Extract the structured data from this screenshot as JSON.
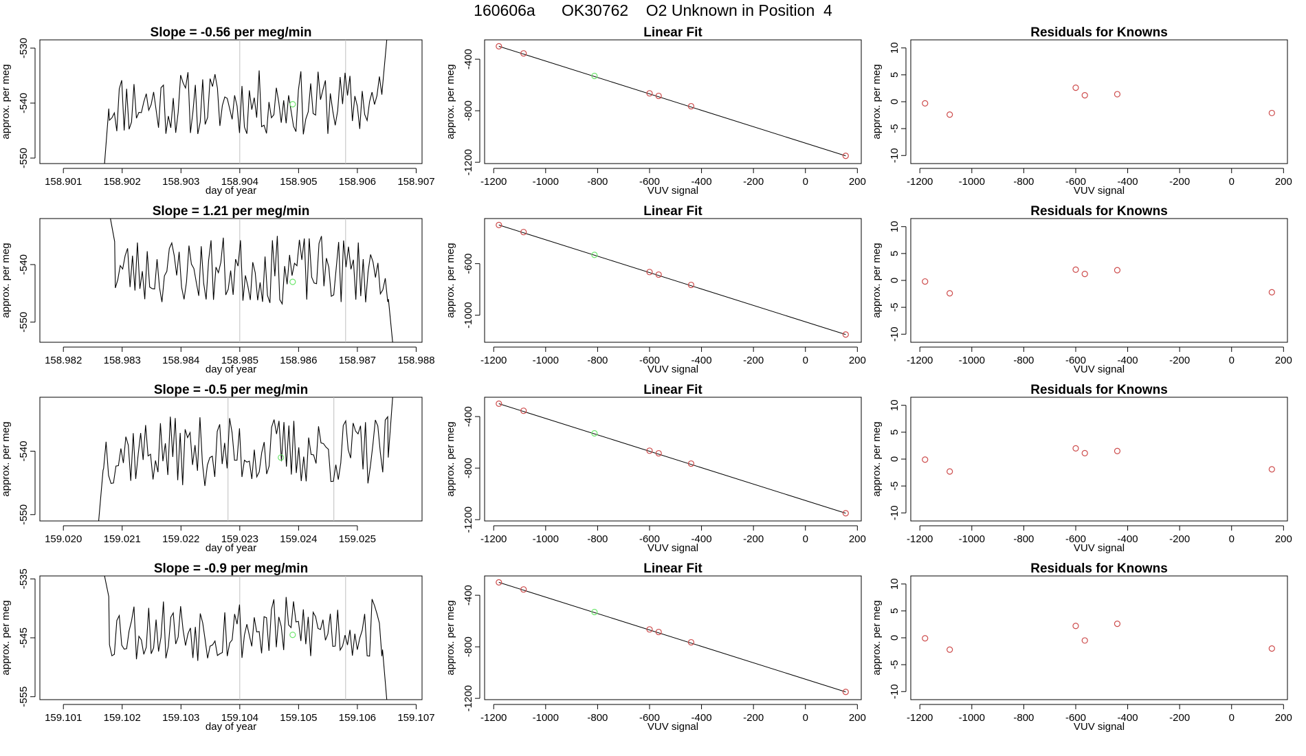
{
  "page_title": "160606a      OK30762    O2 Unknown in Position  4",
  "colors": {
    "line": "#000000",
    "marker_known": "#cd4b4b",
    "marker_unknown": "#6ee66e",
    "vline": "#bebebe",
    "box": "#000000"
  },
  "chart_data": [
    {
      "type": "line",
      "title": "Slope =  -0.56  per meg/min",
      "xlabel": "day of year",
      "ylabel": "approx. per meg",
      "xlim": [
        158.9006,
        158.9071
      ],
      "ylim": [
        -551,
        -528.5
      ],
      "xticks": [
        158.901,
        158.902,
        158.903,
        158.904,
        158.905,
        158.906,
        158.907
      ],
      "xtick_labels": [
        "158.901",
        "158.902",
        "158.903",
        "158.904",
        "158.905",
        "158.906",
        "158.907"
      ],
      "yticks": [
        -550,
        -540,
        -530
      ],
      "ytick_labels": [
        "-550",
        "-540",
        "-530"
      ],
      "vlines": [
        158.904,
        158.9058
      ],
      "unknown_point": [
        158.9049,
        -540.2
      ],
      "series_start": 158.9017,
      "series_end": 158.9065,
      "head": [
        -551,
        -541
      ],
      "tail": [
        -537,
        -528.5
      ],
      "signal": {
        "base": -540,
        "amp": 6,
        "count": 116,
        "seed": 11
      }
    },
    {
      "type": "line",
      "title": "Slope =  1.21  per meg/min",
      "xlabel": "day of year",
      "ylabel": "approx. per meg",
      "xlim": [
        158.9816,
        158.9881
      ],
      "ylim": [
        -553.5,
        -532
      ],
      "xticks": [
        158.982,
        158.983,
        158.984,
        158.985,
        158.986,
        158.987,
        158.988
      ],
      "xtick_labels": [
        "158.982",
        "158.983",
        "158.984",
        "158.985",
        "158.986",
        "158.987",
        "158.988"
      ],
      "yticks": [
        -550,
        -540
      ],
      "ytick_labels": [
        "-550",
        "-540"
      ],
      "vlines": [
        158.985,
        158.9868
      ],
      "unknown_point": [
        158.9859,
        -543
      ],
      "series_start": 158.9828,
      "series_end": 158.9876,
      "head": [
        -532,
        -536
      ],
      "tail": [
        -546,
        -553.5
      ],
      "signal": {
        "base": -541,
        "amp": 6,
        "count": 116,
        "seed": 23
      }
    },
    {
      "type": "line",
      "title": "Slope =  -0.5  per meg/min",
      "xlabel": "day of year",
      "ylabel": "approx. per meg",
      "xlim": [
        159.0196,
        159.0261
      ],
      "ylim": [
        -551,
        -531.5
      ],
      "xticks": [
        159.02,
        159.021,
        159.022,
        159.023,
        159.024,
        159.025
      ],
      "xtick_labels": [
        "159.020",
        "159.021",
        "159.022",
        "159.023",
        "159.024",
        "159.025"
      ],
      "yticks": [
        -550,
        -540
      ],
      "ytick_labels": [
        "-550",
        "-540"
      ],
      "vlines": [
        159.0228,
        159.0246
      ],
      "unknown_point": [
        159.0237,
        -541
      ],
      "series_start": 159.0206,
      "series_end": 159.0256,
      "head": [
        -551,
        -543
      ],
      "tail": [
        -541,
        -531.5
      ],
      "signal": {
        "base": -540,
        "amp": 5.5,
        "count": 120,
        "seed": 37
      }
    },
    {
      "type": "line",
      "title": "Slope =  -0.9  per meg/min",
      "xlabel": "day of year",
      "ylabel": "approx. per meg",
      "xlim": [
        159.1006,
        159.1071
      ],
      "ylim": [
        -555.5,
        -534.5
      ],
      "xticks": [
        159.101,
        159.102,
        159.103,
        159.104,
        159.105,
        159.106,
        159.107
      ],
      "xtick_labels": [
        "159.101",
        "159.102",
        "159.103",
        "159.104",
        "159.105",
        "159.106",
        "159.107"
      ],
      "yticks": [
        -555,
        -545,
        -535
      ],
      "ytick_labels": [
        "-555",
        "-545",
        "-535"
      ],
      "vlines": [
        159.104,
        159.1058
      ],
      "unknown_point": [
        159.1049,
        -544.5
      ],
      "series_start": 159.1017,
      "series_end": 159.1065,
      "head": [
        -534.5,
        -538
      ],
      "tail": [
        -547,
        -555.5
      ],
      "signal": {
        "base": -543.5,
        "amp": 5.5,
        "count": 116,
        "seed": 53
      }
    },
    {
      "type": "scatter",
      "title": "Linear Fit",
      "xlabel": "VUV signal",
      "ylabel": "approx. per meg",
      "xlim": [
        -1235,
        215
      ],
      "ylim": [
        -1210,
        -250
      ],
      "xticks": [
        -1200,
        -1000,
        -800,
        -600,
        -400,
        -200,
        0,
        200
      ],
      "xtick_labels": [
        "-1200",
        "-1000",
        "-800",
        "-600",
        "-400",
        "-200",
        "0",
        "200"
      ],
      "yticks": [
        -1200,
        -800,
        -400
      ],
      "ytick_labels": [
        "-1200",
        "-800",
        "-400"
      ],
      "known_x": [
        -1180,
        -1085,
        -600,
        -565,
        -440,
        155
      ],
      "known_y": [
        -300,
        -355,
        -665,
        -685,
        -765,
        -1150
      ],
      "unknown_x": [
        -812
      ],
      "unknown_y": [
        -530
      ],
      "fit_x": [
        -1180,
        155
      ],
      "fit_y": [
        -300,
        -1150
      ]
    },
    {
      "type": "scatter",
      "title": "Linear Fit",
      "xlabel": "VUV signal",
      "ylabel": "approx. per meg",
      "xlim": [
        -1235,
        215
      ],
      "ylim": [
        -1210,
        -250
      ],
      "xticks": [
        -1200,
        -1000,
        -800,
        -600,
        -400,
        -200,
        0,
        200
      ],
      "xtick_labels": [
        "-1200",
        "-1000",
        "-800",
        "-600",
        "-400",
        "-200",
        "0",
        "200"
      ],
      "yticks": [
        -1000,
        -600
      ],
      "ytick_labels": [
        "-1000",
        "-600"
      ],
      "known_x": [
        -1180,
        -1085,
        -600,
        -565,
        -440,
        155
      ],
      "known_y": [
        -300,
        -355,
        -665,
        -685,
        -765,
        -1150
      ],
      "unknown_x": [
        -812
      ],
      "unknown_y": [
        -532
      ],
      "fit_x": [
        -1180,
        155
      ],
      "fit_y": [
        -300,
        -1150
      ]
    },
    {
      "type": "scatter",
      "title": "Linear Fit",
      "xlabel": "VUV signal",
      "ylabel": "approx. per meg",
      "xlim": [
        -1235,
        215
      ],
      "ylim": [
        -1210,
        -250
      ],
      "xticks": [
        -1200,
        -1000,
        -800,
        -600,
        -400,
        -200,
        0,
        200
      ],
      "xtick_labels": [
        "-1200",
        "-1000",
        "-800",
        "-600",
        "-400",
        "-200",
        "0",
        "200"
      ],
      "yticks": [
        -1200,
        -800,
        -400
      ],
      "ytick_labels": [
        "-1200",
        "-800",
        "-400"
      ],
      "known_x": [
        -1180,
        -1085,
        -600,
        -565,
        -440,
        155
      ],
      "known_y": [
        -300,
        -355,
        -665,
        -685,
        -765,
        -1150
      ],
      "unknown_x": [
        -812
      ],
      "unknown_y": [
        -530
      ],
      "fit_x": [
        -1180,
        155
      ],
      "fit_y": [
        -300,
        -1150
      ]
    },
    {
      "type": "scatter",
      "title": "Linear Fit",
      "xlabel": "VUV signal",
      "ylabel": "approx. per meg",
      "xlim": [
        -1235,
        215
      ],
      "ylim": [
        -1210,
        -250
      ],
      "xticks": [
        -1200,
        -1000,
        -800,
        -600,
        -400,
        -200,
        0,
        200
      ],
      "xtick_labels": [
        "-1200",
        "-1000",
        "-800",
        "-600",
        "-400",
        "-200",
        "0",
        "200"
      ],
      "yticks": [
        -1200,
        -800,
        -400
      ],
      "ytick_labels": [
        "-1200",
        "-800",
        "-400"
      ],
      "known_x": [
        -1180,
        -1085,
        -600,
        -565,
        -440,
        155
      ],
      "known_y": [
        -300,
        -355,
        -665,
        -685,
        -765,
        -1150
      ],
      "unknown_x": [
        -812
      ],
      "unknown_y": [
        -530
      ],
      "fit_x": [
        -1180,
        155
      ],
      "fit_y": [
        -300,
        -1150
      ]
    },
    {
      "type": "scatter",
      "title": "Residuals for Knowns",
      "xlabel": "VUV signal",
      "ylabel": "approx. per meg",
      "xlim": [
        -1235,
        215
      ],
      "ylim": [
        -11.5,
        11.5
      ],
      "xticks": [
        -1200,
        -1000,
        -800,
        -600,
        -400,
        -200,
        0,
        200
      ],
      "xtick_labels": [
        "-1200",
        "-1000",
        "-800",
        "-600",
        "-400",
        "-200",
        "0",
        "200"
      ],
      "yticks": [
        -10,
        -5,
        0,
        5,
        10
      ],
      "ytick_labels": [
        "-10",
        "-5",
        "0",
        "5",
        "10"
      ],
      "known_x": [
        -1180,
        -1085,
        -600,
        -565,
        -440,
        155
      ],
      "known_y": [
        -0.3,
        -2.4,
        2.6,
        1.2,
        1.4,
        -2.1
      ]
    },
    {
      "type": "scatter",
      "title": "Residuals for Knowns",
      "xlabel": "VUV signal",
      "ylabel": "approx. per meg",
      "xlim": [
        -1235,
        215
      ],
      "ylim": [
        -11.5,
        11.5
      ],
      "xticks": [
        -1200,
        -1000,
        -800,
        -600,
        -400,
        -200,
        0,
        200
      ],
      "xtick_labels": [
        "-1200",
        "-1000",
        "-800",
        "-600",
        "-400",
        "-200",
        "0",
        "200"
      ],
      "yticks": [
        -10,
        -5,
        0,
        5,
        10
      ],
      "ytick_labels": [
        "-10",
        "-5",
        "0",
        "5",
        "10"
      ],
      "known_x": [
        -1180,
        -1085,
        -600,
        -565,
        -440,
        155
      ],
      "known_y": [
        -0.2,
        -2.4,
        2.0,
        1.2,
        1.9,
        -2.2
      ]
    },
    {
      "type": "scatter",
      "title": "Residuals for Knowns",
      "xlabel": "VUV signal",
      "ylabel": "approx. per meg",
      "xlim": [
        -1235,
        215
      ],
      "ylim": [
        -11.5,
        11.5
      ],
      "xticks": [
        -1200,
        -1000,
        -800,
        -600,
        -400,
        -200,
        0,
        200
      ],
      "xtick_labels": [
        "-1200",
        "-1000",
        "-800",
        "-600",
        "-400",
        "-200",
        "0",
        "200"
      ],
      "yticks": [
        -10,
        -5,
        0,
        5,
        10
      ],
      "ytick_labels": [
        "-10",
        "-5",
        "0",
        "5",
        "10"
      ],
      "known_x": [
        -1180,
        -1085,
        -600,
        -565,
        -440,
        155
      ],
      "known_y": [
        -0.1,
        -2.3,
        2.0,
        1.1,
        1.5,
        -1.9
      ]
    },
    {
      "type": "scatter",
      "title": "Residuals for Knowns",
      "xlabel": "VUV signal",
      "ylabel": "approx. per meg",
      "xlim": [
        -1235,
        215
      ],
      "ylim": [
        -11.5,
        11.5
      ],
      "xticks": [
        -1200,
        -1000,
        -800,
        -600,
        -400,
        -200,
        0,
        200
      ],
      "xtick_labels": [
        "-1200",
        "-1000",
        "-800",
        "-600",
        "-400",
        "-200",
        "0",
        "200"
      ],
      "yticks": [
        -10,
        -5,
        0,
        5,
        10
      ],
      "ytick_labels": [
        "-10",
        "-5",
        "0",
        "5",
        "10"
      ],
      "known_x": [
        -1180,
        -1085,
        -600,
        -565,
        -440,
        155
      ],
      "known_y": [
        -0.1,
        -2.2,
        2.2,
        -0.5,
        2.6,
        -2.0
      ]
    }
  ]
}
